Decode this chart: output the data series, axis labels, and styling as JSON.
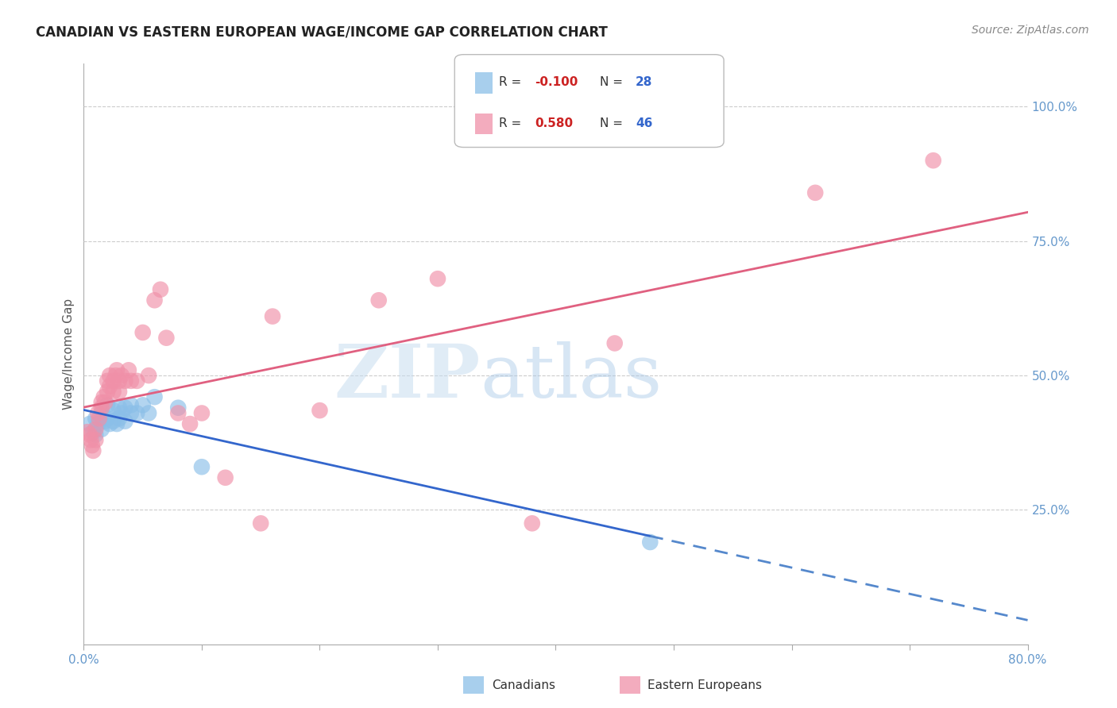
{
  "title": "CANADIAN VS EASTERN EUROPEAN WAGE/INCOME GAP CORRELATION CHART",
  "source": "Source: ZipAtlas.com",
  "ylabel": "Wage/Income Gap",
  "xlim": [
    0.0,
    0.8
  ],
  "ylim": [
    0.0,
    1.08
  ],
  "yticks": [
    0.25,
    0.5,
    0.75,
    1.0
  ],
  "ytick_labels": [
    "25.0%",
    "50.0%",
    "75.0%",
    "100.0%"
  ],
  "xticks": [
    0.0,
    0.1,
    0.2,
    0.3,
    0.4,
    0.5,
    0.6,
    0.7,
    0.8
  ],
  "xtick_labels": [
    "0.0%",
    "",
    "",
    "",
    "",
    "",
    "",
    "",
    "80.0%"
  ],
  "canadian_color": "#8bbfe8",
  "eastern_color": "#f090a8",
  "background_color": "#ffffff",
  "grid_color": "#cccccc",
  "axis_label_color": "#6699cc",
  "watermark_zip": "ZIP",
  "watermark_atlas": "atlas",
  "canadians_x": [
    0.005,
    0.008,
    0.01,
    0.01,
    0.012,
    0.015,
    0.015,
    0.018,
    0.02,
    0.02,
    0.022,
    0.025,
    0.025,
    0.028,
    0.03,
    0.03,
    0.032,
    0.035,
    0.035,
    0.04,
    0.04,
    0.045,
    0.05,
    0.055,
    0.06,
    0.08,
    0.1,
    0.48
  ],
  "canadians_y": [
    0.41,
    0.395,
    0.42,
    0.39,
    0.41,
    0.43,
    0.4,
    0.415,
    0.445,
    0.42,
    0.41,
    0.435,
    0.415,
    0.41,
    0.44,
    0.42,
    0.43,
    0.44,
    0.415,
    0.445,
    0.43,
    0.43,
    0.445,
    0.43,
    0.46,
    0.44,
    0.33,
    0.19
  ],
  "eastern_x": [
    0.003,
    0.005,
    0.006,
    0.007,
    0.008,
    0.01,
    0.01,
    0.012,
    0.013,
    0.015,
    0.015,
    0.017,
    0.018,
    0.02,
    0.02,
    0.022,
    0.022,
    0.025,
    0.025,
    0.027,
    0.028,
    0.03,
    0.03,
    0.032,
    0.035,
    0.038,
    0.04,
    0.045,
    0.05,
    0.055,
    0.06,
    0.065,
    0.07,
    0.08,
    0.09,
    0.1,
    0.12,
    0.15,
    0.16,
    0.2,
    0.25,
    0.3,
    0.38,
    0.45,
    0.62,
    0.72
  ],
  "eastern_y": [
    0.395,
    0.39,
    0.38,
    0.37,
    0.36,
    0.4,
    0.38,
    0.43,
    0.42,
    0.44,
    0.45,
    0.46,
    0.45,
    0.47,
    0.49,
    0.5,
    0.48,
    0.49,
    0.47,
    0.5,
    0.51,
    0.47,
    0.49,
    0.5,
    0.49,
    0.51,
    0.49,
    0.49,
    0.58,
    0.5,
    0.64,
    0.66,
    0.57,
    0.43,
    0.41,
    0.43,
    0.31,
    0.225,
    0.61,
    0.435,
    0.64,
    0.68,
    0.225,
    0.56,
    0.84,
    0.9
  ],
  "canadian_line_x": [
    0.0,
    0.48,
    0.8
  ],
  "canadian_line_solid_end": 0.48,
  "eastern_line_x": [
    0.0,
    0.8
  ],
  "legend_R1": "R = -0.100",
  "legend_N1": "N = 28",
  "legend_R2": "R =  0.580",
  "legend_N2": "N = 46"
}
